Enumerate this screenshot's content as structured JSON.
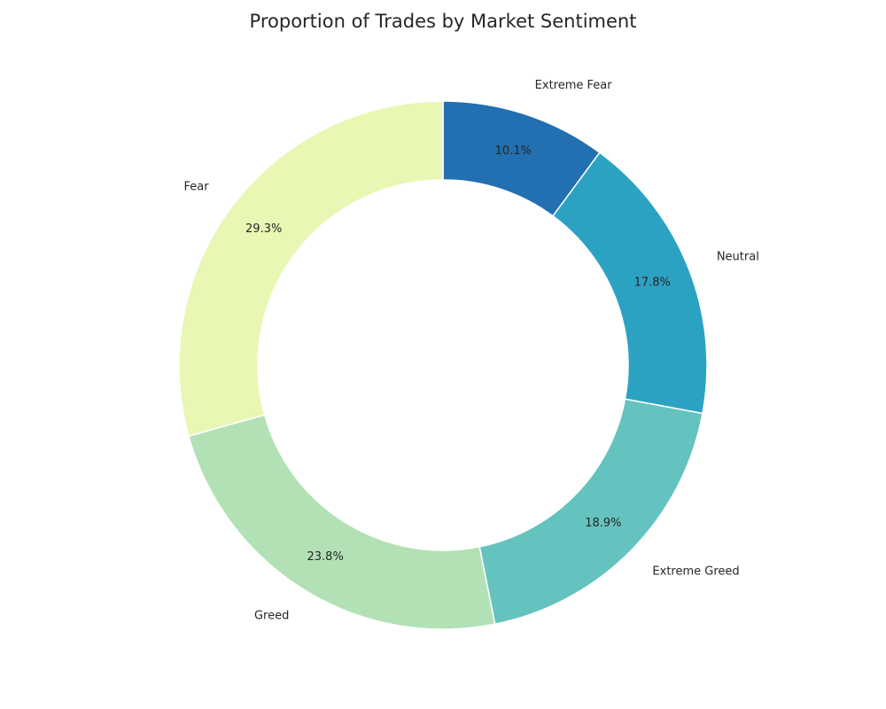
{
  "chart_data": {
    "type": "pie",
    "title": "Proportion of Trades by Market Sentiment",
    "donut": true,
    "legend": "none",
    "slices": [
      {
        "label": "Extreme Fear",
        "value": 10.1,
        "pct_label": "10.1%",
        "color": "#226fb1"
      },
      {
        "label": "Neutral",
        "value": 17.8,
        "pct_label": "17.8%",
        "color": "#2ca2c3"
      },
      {
        "label": "Extreme Greed",
        "value": 18.9,
        "pct_label": "18.9%",
        "color": "#64c3be"
      },
      {
        "label": "Greed",
        "value": 23.8,
        "pct_label": "23.8%",
        "color": "#b2e1b6"
      },
      {
        "label": "Fear",
        "value": 29.3,
        "pct_label": "29.3%",
        "color": "#e8f7b3"
      }
    ]
  }
}
